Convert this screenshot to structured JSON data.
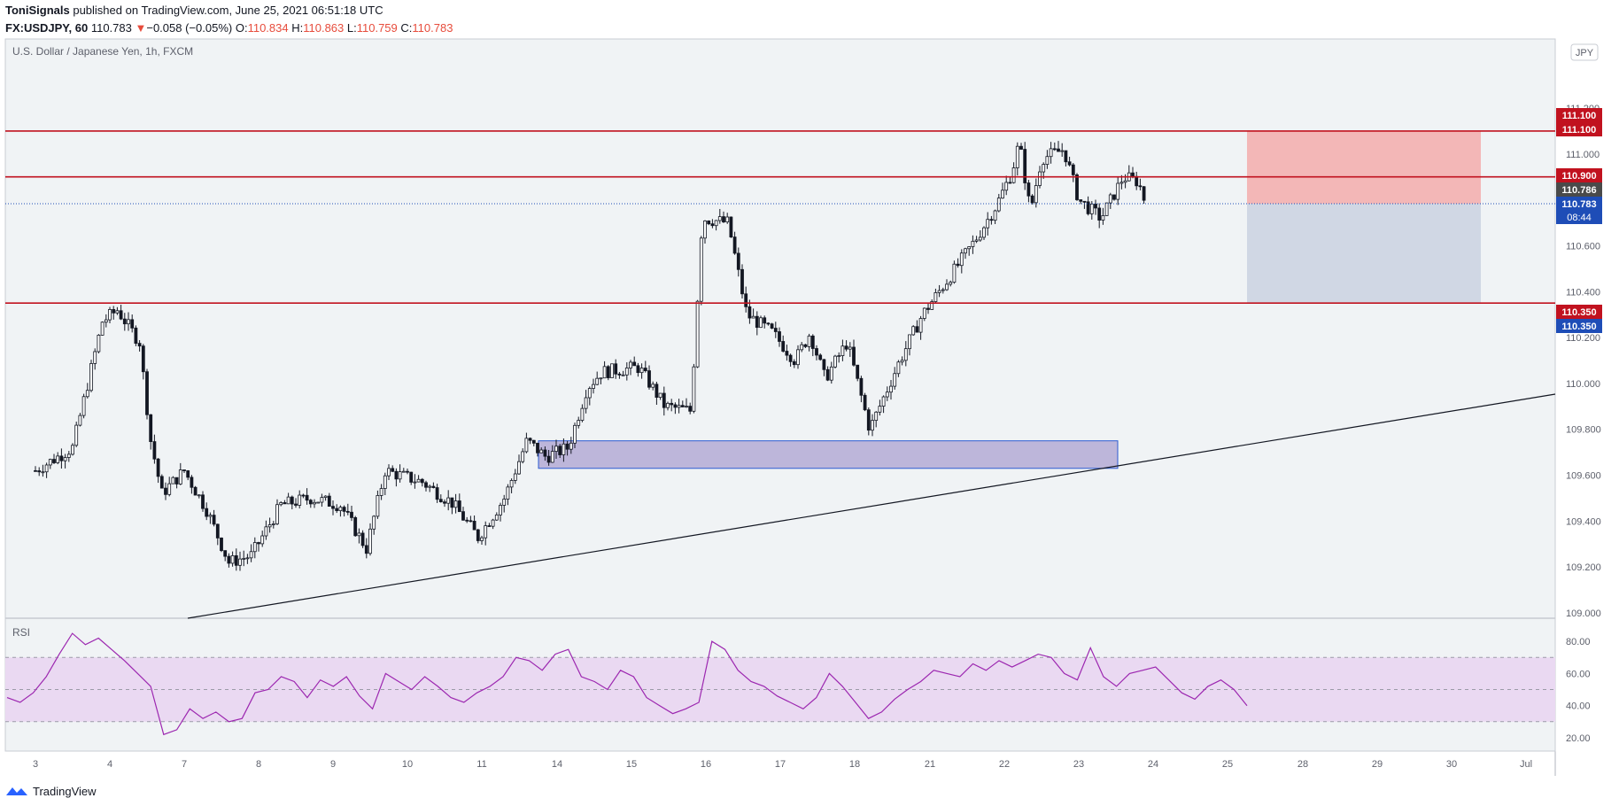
{
  "header": {
    "author": "ToniSignals",
    "published_text": "published on TradingView.com, June 25, 2021 06:51:18 UTC",
    "symbol": "FX:USDJPY, 60",
    "last": "110.783",
    "change_arrow": "▼",
    "change": "−0.058 (−0.05%)",
    "o_label": "O:",
    "o_value": "110.834",
    "h_label": "H:",
    "h_value": "110.863",
    "l_label": "L:",
    "l_value": "110.759",
    "c_label": "C:",
    "c_value": "110.783"
  },
  "footer": {
    "brand": "TradingView"
  },
  "colors": {
    "background": "#f0f3f5",
    "candle": "#131722",
    "resistance": "#c1121f",
    "stop_zone": "#f3b7b7",
    "target_zone": "#d0d7e4",
    "demand_zone": "#bdb6da",
    "demand_border": "#2c5bd1",
    "rsi_band": "#ead9f2",
    "rsi_line": "#9c27b0",
    "price_tag_red": "#c1121f",
    "price_tag_blue": "#1e4db7",
    "price_tag_gray": "#4a4a4a"
  },
  "chart_data": {
    "type": "candlestick",
    "title": "U.S. Dollar / Japanese Yen, 1h, FXCM",
    "currency_badge": "JPY",
    "x_ticks": [
      "3",
      "4",
      "7",
      "8",
      "9",
      "10",
      "11",
      "14",
      "15",
      "16",
      "17",
      "18",
      "21",
      "22",
      "23",
      "24",
      "25",
      "28",
      "29",
      "30",
      "Jul"
    ],
    "y_ticks": [
      "111.200",
      "111.000",
      "110.800",
      "110.600",
      "110.400",
      "110.200",
      "110.000",
      "109.800",
      "109.600",
      "109.400",
      "109.200",
      "109.000"
    ],
    "ylim": [
      109.0,
      111.2
    ],
    "path_points": [
      [
        "3",
        109.62
      ],
      [
        "3.5",
        109.72
      ],
      [
        "3.9",
        110.27
      ],
      [
        "4.1",
        110.32
      ],
      [
        "4.4",
        110.18
      ],
      [
        "4.55",
        109.75
      ],
      [
        "4.7",
        109.52
      ],
      [
        "5.0",
        109.62
      ],
      [
        "5.3",
        109.45
      ],
      [
        "5.6",
        109.22
      ],
      [
        "5.9",
        109.25
      ],
      [
        "6.3",
        109.47
      ],
      [
        "6.7",
        109.5
      ],
      [
        "7.1",
        109.47
      ],
      [
        "7.45",
        109.28
      ],
      [
        "7.7",
        109.62
      ],
      [
        "8.2",
        109.57
      ],
      [
        "8.6",
        109.48
      ],
      [
        "8.95",
        109.33
      ],
      [
        "9.3",
        109.5
      ],
      [
        "9.6",
        109.75
      ],
      [
        "9.85",
        109.68
      ],
      [
        "10.15",
        109.72
      ],
      [
        "10.4",
        109.98
      ],
      [
        "10.6",
        110.05
      ],
      [
        "11.1",
        110.07
      ],
      [
        "11.45",
        109.9
      ],
      [
        "11.8",
        109.88
      ],
      [
        "11.95",
        110.72
      ],
      [
        "12.3",
        110.7
      ],
      [
        "12.55",
        110.3
      ],
      [
        "12.9",
        110.22
      ],
      [
        "13.2",
        110.1
      ],
      [
        "13.4",
        110.22
      ],
      [
        "13.6",
        110.02
      ],
      [
        "13.9",
        110.18
      ],
      [
        "14.2",
        109.8
      ],
      [
        "14.6",
        110.1
      ],
      [
        "14.9",
        110.3
      ],
      [
        "15.3",
        110.48
      ],
      [
        "15.6",
        110.62
      ],
      [
        "15.9",
        110.78
      ],
      [
        "16.1",
        110.92
      ],
      [
        "16.2",
        111.05
      ],
      [
        "16.35",
        110.75
      ],
      [
        "16.5",
        110.98
      ],
      [
        "16.8",
        111.02
      ],
      [
        "17.0",
        110.8
      ],
      [
        "17.3",
        110.72
      ],
      [
        "17.6",
        110.9
      ],
      [
        "17.8",
        110.88
      ],
      [
        "17.9",
        110.783
      ]
    ],
    "levels": [
      111.1,
      110.9,
      110.35
    ],
    "current_price": 110.783,
    "countdown": "08:44",
    "price_labels": [
      {
        "text": "111.100",
        "value": 111.1,
        "color": "red"
      },
      {
        "text": "111.100",
        "value": 111.1,
        "color": "red"
      },
      {
        "text": "110.900",
        "value": 110.9,
        "color": "red"
      },
      {
        "text": "110.786",
        "value": 110.786,
        "color": "gray"
      },
      {
        "text": "110.783",
        "value": 110.783,
        "color": "blue"
      },
      {
        "text": "110.350",
        "value": 110.35,
        "color": "red"
      },
      {
        "text": "110.350",
        "value": 110.35,
        "color": "blue"
      }
    ],
    "position": {
      "entry": 110.783,
      "stop": 111.1,
      "target": 110.35
    },
    "demand_zone": {
      "top": 109.75,
      "bottom": 109.63
    },
    "rsi": {
      "label": "RSI",
      "ticks": [
        "80.00",
        "60.00",
        "40.00",
        "20.00"
      ],
      "band": [
        30,
        70
      ],
      "ylim": [
        15,
        90
      ],
      "values": [
        45,
        42,
        48,
        58,
        72,
        85,
        78,
        82,
        75,
        68,
        60,
        52,
        22,
        25,
        38,
        32,
        36,
        30,
        32,
        48,
        50,
        58,
        55,
        45,
        56,
        52,
        58,
        46,
        38,
        60,
        55,
        50,
        58,
        52,
        45,
        42,
        48,
        52,
        58,
        70,
        68,
        62,
        72,
        75,
        58,
        55,
        50,
        62,
        58,
        45,
        40,
        35,
        38,
        42,
        80,
        75,
        62,
        55,
        52,
        46,
        42,
        38,
        45,
        60,
        52,
        42,
        32,
        36,
        44,
        50,
        55,
        62,
        60,
        58,
        66,
        62,
        68,
        64,
        68,
        72,
        70,
        60,
        56,
        76,
        58,
        52,
        60,
        62,
        64,
        56,
        48,
        44,
        52,
        56,
        50,
        40
      ]
    }
  }
}
